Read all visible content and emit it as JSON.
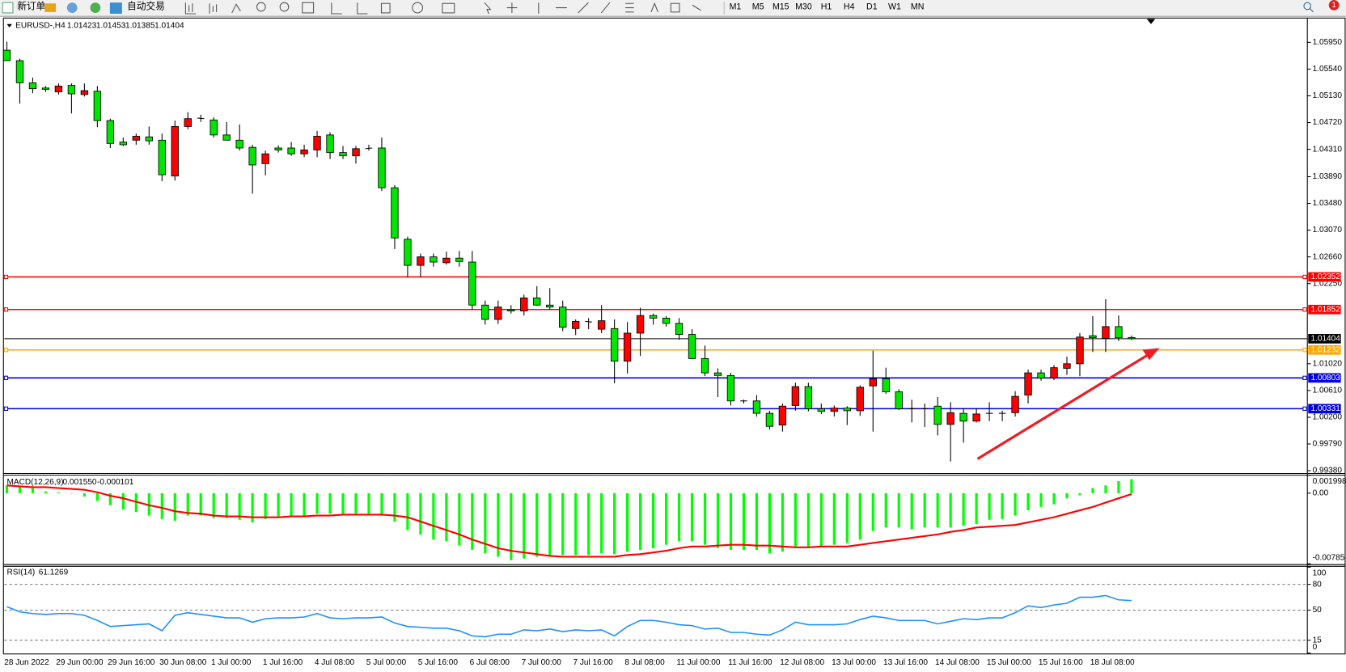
{
  "toolbar": {
    "new_order": "新订单",
    "auto_trading": "自动交易",
    "timeframes": [
      "M1",
      "M5",
      "M15",
      "M30",
      "H1",
      "H4",
      "D1",
      "W1",
      "MN"
    ],
    "notifications": "1"
  },
  "chart_data": [
    {
      "type": "candlestick",
      "title": "EURUSD-,H4",
      "up_color": "#ff0000",
      "down_color": "#00e600",
      "categories": [
        "28 Jun 2022",
        null,
        null,
        null,
        "29 Jun 00:00",
        null,
        null,
        null,
        "29 Jun 16:00",
        null,
        null,
        null,
        "30 Jun 08:00",
        null,
        null,
        null,
        "1 Jul 00:00",
        null,
        null,
        null,
        "1 Jul 16:00",
        null,
        null,
        null,
        "4 Jul 08:00",
        null,
        null,
        null,
        "5 Jul 00:00",
        null,
        null,
        null,
        "5 Jul 16:00",
        null,
        null,
        null,
        "6 Jul 08:00",
        null,
        null,
        null,
        "7 Jul 00:00",
        null,
        null,
        null,
        "7 Jul 16:00",
        null,
        null,
        null,
        "8 Jul 08:00",
        null,
        null,
        null,
        "11 Jul 00:00",
        null,
        null,
        null,
        "11 Jul 16:00",
        null,
        null,
        null,
        "12 Jul 08:00",
        null,
        null,
        null,
        "13 Jul 00:00",
        null,
        null,
        null,
        "13 Jul 16:00",
        null,
        null,
        null,
        "14 Jul 08:00",
        null,
        null,
        null,
        "15 Jul 00:00",
        null,
        null,
        null,
        "15 Jul 16:00",
        null,
        null,
        null,
        "18 Jul 08:00",
        null,
        null,
        null
      ],
      "open": [
        1.0583,
        1.0567,
        1.0533,
        1.0525,
        1.0519,
        1.0529,
        1.0515,
        1.052,
        1.0475,
        1.0442,
        1.0445,
        1.045,
        1.0445,
        1.039,
        1.0466,
        1.0479,
        1.0476,
        1.0453,
        1.0445,
        1.0434,
        1.0409,
        1.0433,
        1.0433,
        1.0424,
        1.043,
        1.0453,
        1.0426,
        1.0421,
        1.0432,
        1.0433,
        1.0372,
        1.0293,
        1.0253,
        1.0266,
        1.0257,
        1.0264,
        1.0258,
        1.0192,
        1.017,
        1.0185,
        1.0183,
        1.0203,
        1.0192,
        1.0189,
        1.0156,
        1.0167,
        1.0155,
        1.0156,
        1.0106,
        1.0149,
        1.0176,
        1.0172,
        1.0164,
        1.0147,
        1.011,
        1.0088,
        1.0084,
        1.0045,
        1.0045,
        1.0026,
        1.0008,
        1.0038,
        1.0067,
        1.0033,
        1.0029,
        1.0034,
        1.003,
        1.0068,
        1.0079,
        1.0059,
        1.0033,
        1.0033,
        1.0037,
        1.0009,
        1.0026,
        1.0014,
        1.0026,
        1.0026,
        1.0027,
        1.0054,
        1.0088,
        1.008,
        1.0095,
        1.0102,
        1.0145,
        1.0141,
        1.0159,
        1.01423
      ],
      "high": [
        1.0596,
        1.057,
        1.0541,
        1.0528,
        1.0532,
        1.0532,
        1.0532,
        1.0528,
        1.0478,
        1.0449,
        1.0455,
        1.0466,
        1.0455,
        1.0475,
        1.0488,
        1.0484,
        1.048,
        1.0473,
        1.0469,
        1.0438,
        1.0429,
        1.0437,
        1.0442,
        1.0438,
        1.0459,
        1.0457,
        1.0436,
        1.0436,
        1.0438,
        1.0449,
        1.0376,
        1.0297,
        1.0271,
        1.0271,
        1.0274,
        1.0275,
        1.0275,
        1.0199,
        1.0199,
        1.0192,
        1.0208,
        1.0221,
        1.0218,
        1.0199,
        1.017,
        1.0172,
        1.0192,
        1.017,
        1.0166,
        1.0188,
        1.0179,
        1.0175,
        1.0172,
        1.0155,
        1.013,
        1.0095,
        1.0088,
        1.0047,
        1.0054,
        1.003,
        1.0041,
        1.0073,
        1.0073,
        1.0041,
        1.0038,
        1.0037,
        1.0069,
        1.0122,
        1.0096,
        1.0063,
        1.0047,
        1.0041,
        1.0051,
        1.0043,
        1.0034,
        1.0034,
        1.0043,
        1.003,
        1.006,
        1.0093,
        1.0093,
        1.01,
        1.0113,
        1.0149,
        1.0175,
        1.0201,
        1.0176,
        1.01453
      ],
      "low": [
        1.0567,
        1.0501,
        1.0517,
        1.0519,
        1.0515,
        1.0486,
        1.0512,
        1.0465,
        1.0433,
        1.0436,
        1.0438,
        1.0438,
        1.0382,
        1.0383,
        1.0462,
        1.0473,
        1.0449,
        1.0445,
        1.0429,
        1.0363,
        1.0391,
        1.0426,
        1.0421,
        1.0419,
        1.0419,
        1.0416,
        1.0416,
        1.0409,
        1.0429,
        1.0367,
        1.0278,
        1.0235,
        1.0235,
        1.0251,
        1.0254,
        1.0251,
        1.0185,
        1.0162,
        1.0163,
        1.0179,
        1.0176,
        1.0191,
        1.0185,
        1.0152,
        1.0146,
        1.0155,
        1.0149,
        1.0072,
        1.0087,
        1.0114,
        1.0162,
        1.0159,
        1.0139,
        1.0109,
        1.0083,
        1.0051,
        1.0038,
        1.0041,
        1.0021,
        1.0001,
        0.9998,
        1.003,
        1.0029,
        1.0025,
        1.0021,
        1.0008,
        1.0022,
        0.9998,
        1.0056,
        1.0031,
        1.0012,
        1.0005,
        0.9992,
        0.9952,
        0.9981,
        1.0012,
        1.0014,
        1.0014,
        1.0021,
        1.0041,
        1.0076,
        1.0077,
        1.0085,
        1.0083,
        1.012,
        1.012,
        1.0137,
        1.01385
      ],
      "close": [
        1.0567,
        1.0533,
        1.0524,
        1.0523,
        1.0528,
        1.0516,
        1.0521,
        1.0475,
        1.044,
        1.0438,
        1.0451,
        1.0444,
        1.0392,
        1.0466,
        1.0478,
        1.0478,
        1.0453,
        1.0445,
        1.0433,
        1.0407,
        1.0424,
        1.043,
        1.0424,
        1.043,
        1.0451,
        1.0426,
        1.0421,
        1.0432,
        1.0433,
        1.0372,
        1.0295,
        1.0253,
        1.0266,
        1.0258,
        1.0264,
        1.0259,
        1.0192,
        1.017,
        1.0189,
        1.0183,
        1.0203,
        1.0192,
        1.0189,
        1.0158,
        1.0167,
        1.0166,
        1.0168,
        1.0106,
        1.0149,
        1.0176,
        1.0172,
        1.0164,
        1.0147,
        1.011,
        1.0088,
        1.0084,
        1.0045,
        1.0045,
        1.0026,
        1.0006,
        1.0037,
        1.0067,
        1.0033,
        1.0029,
        1.0034,
        1.003,
        1.0066,
        1.0079,
        1.0059,
        1.0033,
        1.0033,
        1.0033,
        1.0009,
        1.0027,
        1.0014,
        1.0025,
        1.0026,
        1.0026,
        1.0052,
        1.0088,
        1.008,
        1.0096,
        1.0102,
        1.0143,
        1.0142,
        1.0159,
        1.0142,
        1.01404
      ],
      "ylim": [
        0.9935,
        1.0631
      ],
      "yticks": [
        {
          "value": 1.0595,
          "label": "1.05950"
        },
        {
          "value": 1.0554,
          "label": "1.05540"
        },
        {
          "value": 1.0513,
          "label": "1.05130"
        },
        {
          "value": 1.0472,
          "label": "1.04720"
        },
        {
          "value": 1.0431,
          "label": "1.04310"
        },
        {
          "value": 1.0389,
          "label": "1.03890"
        },
        {
          "value": 1.0348,
          "label": "1.03480"
        },
        {
          "value": 1.0307,
          "label": "1.03070"
        },
        {
          "value": 1.0266,
          "label": "1.02660"
        },
        {
          "value": 1.0225,
          "label": "1.02250"
        },
        {
          "value": 1.0102,
          "label": "1.01020"
        },
        {
          "value": 1.0061,
          "label": "1.00610"
        },
        {
          "value": 1.002,
          "label": "1.00200"
        },
        {
          "value": 0.9979,
          "label": "0.99790"
        },
        {
          "value": 0.9938,
          "label": "0.99380"
        }
      ],
      "lines": [
        {
          "value": 1.02352,
          "color": "#ff0000"
        },
        {
          "value": 1.01852,
          "color": "#ff0000"
        },
        {
          "value": 1.01232,
          "color": "#ffa500"
        },
        {
          "value": 1.00803,
          "color": "#0000e0"
        },
        {
          "value": 1.00331,
          "color": "#0000e0"
        }
      ],
      "grid": false
    },
    {
      "type": "macd",
      "title": "MACD(12,26,9)",
      "header_values": [
        "0.001550",
        "-0.000101"
      ],
      "histogram": {
        "color": "#00ff00",
        "values": [
          0.00086,
          0.00067,
          0.00057,
          0.00019,
          0.0001,
          0,
          -0.00038,
          -0.00086,
          -0.00134,
          -0.00182,
          -0.0021,
          -0.00249,
          -0.00287,
          -0.00306,
          -0.00249,
          -0.00249,
          -0.00277,
          -0.00277,
          -0.00296,
          -0.00325,
          -0.00287,
          -0.00258,
          -0.00249,
          -0.00249,
          -0.00229,
          -0.00229,
          -0.00229,
          -0.00229,
          -0.00229,
          -0.00249,
          -0.00315,
          -0.00411,
          -0.00459,
          -0.00516,
          -0.00535,
          -0.00583,
          -0.00631,
          -0.00669,
          -0.00707,
          -0.00746,
          -0.00727,
          -0.00707,
          -0.00707,
          -0.00688,
          -0.00688,
          -0.00688,
          -0.00669,
          -0.00679,
          -0.0065,
          -0.00631,
          -0.00612,
          -0.00574,
          -0.00535,
          -0.00535,
          -0.00574,
          -0.00612,
          -0.00631,
          -0.00631,
          -0.00631,
          -0.00669,
          -0.0065,
          -0.00593,
          -0.00593,
          -0.00593,
          -0.00574,
          -0.00554,
          -0.00516,
          -0.00421,
          -0.00382,
          -0.00382,
          -0.00402,
          -0.00382,
          -0.00382,
          -0.00382,
          -0.00363,
          -0.00344,
          -0.00296,
          -0.00287,
          -0.00249,
          -0.00191,
          -0.00153,
          -0.00124,
          -0.00057,
          -0.00019,
          0.00057,
          0.00086,
          0.00134,
          0.00155
        ]
      },
      "signal": {
        "color": "#ff0000",
        "values": [
          0.00086,
          0.00076,
          0.00067,
          0.00067,
          0.00057,
          0.00048,
          0.00038,
          0.0001,
          -0.00029,
          -0.00057,
          -0.00096,
          -0.00134,
          -0.00163,
          -0.00201,
          -0.0022,
          -0.00229,
          -0.00249,
          -0.00258,
          -0.00258,
          -0.00268,
          -0.00268,
          -0.00268,
          -0.00258,
          -0.00258,
          -0.00249,
          -0.00249,
          -0.00239,
          -0.00239,
          -0.00239,
          -0.00239,
          -0.00249,
          -0.00268,
          -0.00315,
          -0.00363,
          -0.00411,
          -0.00459,
          -0.00516,
          -0.00564,
          -0.00612,
          -0.00641,
          -0.0066,
          -0.00679,
          -0.00698,
          -0.00707,
          -0.00707,
          -0.00707,
          -0.00707,
          -0.00707,
          -0.00688,
          -0.00679,
          -0.0066,
          -0.00641,
          -0.00612,
          -0.00593,
          -0.00593,
          -0.00583,
          -0.00574,
          -0.00574,
          -0.00583,
          -0.00583,
          -0.00593,
          -0.00602,
          -0.00602,
          -0.00593,
          -0.00593,
          -0.00593,
          -0.00574,
          -0.00554,
          -0.00535,
          -0.00516,
          -0.00497,
          -0.00478,
          -0.00459,
          -0.0043,
          -0.00411,
          -0.00382,
          -0.00373,
          -0.00363,
          -0.00354,
          -0.00325,
          -0.00296,
          -0.00268,
          -0.00229,
          -0.00191,
          -0.00153,
          -0.00105,
          -0.00057,
          -0.000101
        ]
      },
      "ylim": [
        -0.00785,
        0.001998
      ],
      "yticks": [
        0.001998,
        {
          "value": 0,
          "label": "0.00"
        },
        -0.00785
      ]
    },
    {
      "type": "line",
      "title": "RSI(14)",
      "color": "#1e90ff",
      "values": [
        54,
        48,
        46,
        45,
        46,
        46,
        44,
        38,
        31,
        32,
        33,
        34,
        26,
        44,
        47,
        45,
        43,
        41,
        41,
        36,
        40,
        41,
        41,
        42,
        46,
        41,
        40,
        41,
        41,
        42,
        35,
        31,
        30,
        29,
        29,
        26,
        20,
        19,
        22,
        22,
        27,
        26,
        28,
        25,
        27,
        26,
        27,
        20,
        31,
        38,
        38,
        36,
        33,
        32,
        28,
        29,
        24,
        24,
        22,
        21,
        27,
        36,
        33,
        33,
        33,
        34,
        39,
        43,
        41,
        38,
        38,
        38,
        34,
        37,
        40,
        39,
        41,
        41,
        47,
        55,
        53,
        56,
        58,
        65,
        65,
        67,
        62,
        61.1269
      ],
      "ylim": [
        0,
        100
      ],
      "yticks": [
        100,
        80,
        50,
        15,
        0
      ],
      "levels": [
        80,
        50,
        15
      ]
    }
  ]
}
